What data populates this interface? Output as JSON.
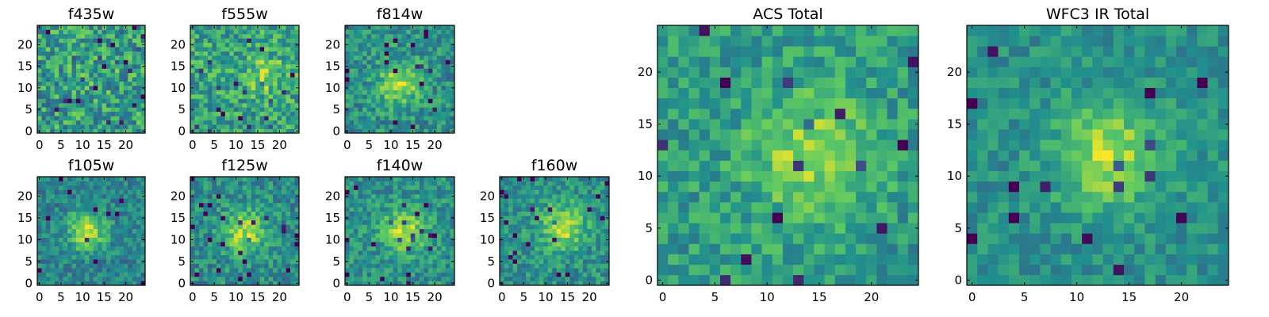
{
  "colormap": [
    "#440154",
    "#3b528b",
    "#21908d",
    "#5dc962",
    "#fde725"
  ],
  "chart_data": [
    {
      "type": "heatmap",
      "panel_id": "f435w",
      "title": "f435w",
      "grid_size": 25,
      "xlim": [
        -0.5,
        24.5
      ],
      "ylim": [
        -0.5,
        24.5
      ],
      "xticks": [
        0,
        5,
        10,
        15,
        20
      ],
      "yticks": [
        0,
        5,
        10,
        15,
        20
      ],
      "blob": {
        "x": 12,
        "y": 12,
        "sigma": 5,
        "amp": 0.05
      },
      "base": 0.55,
      "noise": 0.25,
      "seed": 11
    },
    {
      "type": "heatmap",
      "panel_id": "f555w",
      "title": "f555w",
      "grid_size": 25,
      "xlim": [
        -0.5,
        24.5
      ],
      "ylim": [
        -0.5,
        24.5
      ],
      "xticks": [
        0,
        5,
        10,
        15,
        20
      ],
      "yticks": [
        0,
        5,
        10,
        15,
        20
      ],
      "blob": {
        "x": 17,
        "y": 13,
        "sigma": 3,
        "amp": 0.25
      },
      "base": 0.58,
      "noise": 0.22,
      "seed": 23
    },
    {
      "type": "heatmap",
      "panel_id": "f814w",
      "title": "f814w",
      "grid_size": 25,
      "xlim": [
        -0.5,
        24.5
      ],
      "ylim": [
        -0.5,
        24.5
      ],
      "xticks": [
        0,
        5,
        10,
        15,
        20
      ],
      "yticks": [
        0,
        5,
        10,
        15,
        20
      ],
      "blob": {
        "x": 12,
        "y": 11,
        "sigma": 3.5,
        "amp": 0.35
      },
      "base": 0.5,
      "noise": 0.18,
      "seed": 37
    },
    {
      "type": "heatmap",
      "panel_id": "f105w",
      "title": "f105w",
      "grid_size": 25,
      "xlim": [
        -0.5,
        24.5
      ],
      "ylim": [
        -0.5,
        24.5
      ],
      "xticks": [
        0,
        5,
        10,
        15,
        20
      ],
      "yticks": [
        0,
        5,
        10,
        15,
        20
      ],
      "blob": {
        "x": 11,
        "y": 12,
        "sigma": 3,
        "amp": 0.45
      },
      "base": 0.45,
      "noise": 0.15,
      "seed": 41
    },
    {
      "type": "heatmap",
      "panel_id": "f125w",
      "title": "f125w",
      "grid_size": 25,
      "xlim": [
        -0.5,
        24.5
      ],
      "ylim": [
        -0.5,
        24.5
      ],
      "xticks": [
        0,
        5,
        10,
        15,
        20
      ],
      "yticks": [
        0,
        5,
        10,
        15,
        20
      ],
      "blob": {
        "x": 12,
        "y": 12,
        "sigma": 3.5,
        "amp": 0.4
      },
      "base": 0.48,
      "noise": 0.17,
      "seed": 53
    },
    {
      "type": "heatmap",
      "panel_id": "f140w",
      "title": "f140w",
      "grid_size": 25,
      "xlim": [
        -0.5,
        24.5
      ],
      "ylim": [
        -0.5,
        24.5
      ],
      "xticks": [
        0,
        5,
        10,
        15,
        20
      ],
      "yticks": [
        0,
        5,
        10,
        15,
        20
      ],
      "blob": {
        "x": 13,
        "y": 12,
        "sigma": 3.5,
        "amp": 0.4
      },
      "base": 0.5,
      "noise": 0.16,
      "seed": 67
    },
    {
      "type": "heatmap",
      "panel_id": "f160w",
      "title": "f160w",
      "grid_size": 25,
      "xlim": [
        -0.5,
        24.5
      ],
      "ylim": [
        -0.5,
        24.5
      ],
      "xticks": [
        0,
        5,
        10,
        15,
        20
      ],
      "yticks": [
        0,
        5,
        10,
        15,
        20
      ],
      "blob": {
        "x": 14,
        "y": 13,
        "sigma": 3.5,
        "amp": 0.4
      },
      "base": 0.5,
      "noise": 0.16,
      "seed": 79
    },
    {
      "type": "heatmap",
      "panel_id": "acs-total",
      "title": "ACS Total",
      "grid_size": 25,
      "xlim": [
        -0.5,
        24.5
      ],
      "ylim": [
        -0.5,
        24.5
      ],
      "xticks": [
        0,
        5,
        10,
        15,
        20
      ],
      "yticks": [
        0,
        5,
        10,
        15,
        20
      ],
      "blob": {
        "x": 14,
        "y": 12,
        "sigma": 4,
        "amp": 0.3
      },
      "base": 0.55,
      "noise": 0.16,
      "seed": 97
    },
    {
      "type": "heatmap",
      "panel_id": "wfc3-ir-total",
      "title": "WFC3 IR Total",
      "grid_size": 25,
      "xlim": [
        -0.5,
        24.5
      ],
      "ylim": [
        -0.5,
        24.5
      ],
      "xticks": [
        0,
        5,
        10,
        15,
        20
      ],
      "yticks": [
        0,
        5,
        10,
        15,
        20
      ],
      "blob": {
        "x": 13,
        "y": 12,
        "sigma": 3.5,
        "amp": 0.38
      },
      "base": 0.5,
      "noise": 0.12,
      "seed": 113
    }
  ]
}
